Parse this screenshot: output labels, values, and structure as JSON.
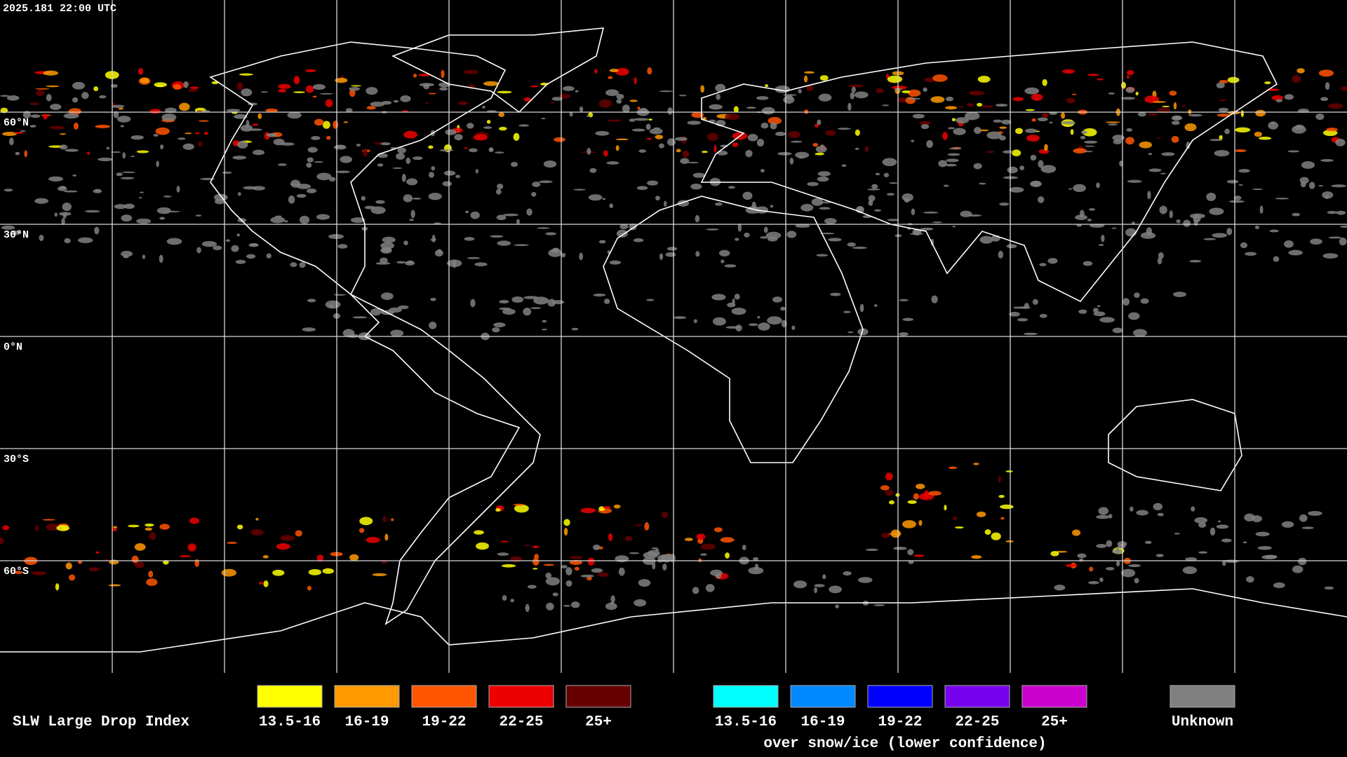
{
  "timestamp": "2025.181 22:00 UTC",
  "latitude_labels": [
    "60°N",
    "30°N",
    "0°N",
    "30°S",
    "60°S"
  ],
  "legend": {
    "title": "SLW Large Drop Index",
    "items": [
      {
        "label": "13.5-16",
        "color": "#ffff00"
      },
      {
        "label": "16-19",
        "color": "#ff9900"
      },
      {
        "label": "19-22",
        "color": "#ff5500"
      },
      {
        "label": "22-25",
        "color": "#ee0000"
      },
      {
        "label": "25+",
        "color": "#660000"
      }
    ],
    "snow_ice_items": [
      {
        "label": "13.5-16",
        "color": "#00ffff"
      },
      {
        "label": "16-19",
        "color": "#0088ff"
      },
      {
        "label": "19-22",
        "color": "#0000ff"
      },
      {
        "label": "22-25",
        "color": "#7700ee"
      },
      {
        "label": "25+",
        "color": "#cc00cc"
      }
    ],
    "snow_ice_caption": "over snow/ice (lower confidence)",
    "unknown": {
      "label": "Unknown",
      "color": "#808080"
    }
  }
}
